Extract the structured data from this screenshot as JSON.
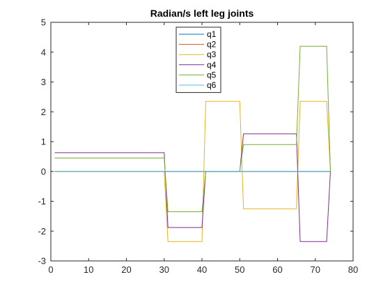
{
  "chart_data": {
    "type": "line",
    "title": "Radian/s left leg joints",
    "xlabel": "",
    "ylabel": "",
    "xlim": [
      0,
      80
    ],
    "ylim": [
      -3,
      5
    ],
    "xticks": [
      0,
      10,
      20,
      30,
      40,
      50,
      60,
      70,
      80
    ],
    "yticks": [
      -3,
      -2,
      -1,
      0,
      1,
      2,
      3,
      4,
      5
    ],
    "grid": false,
    "legend_position": "top-center",
    "series": [
      {
        "name": "q1",
        "color": "#0072BD",
        "x": [
          1,
          74
        ],
        "y": [
          0,
          0
        ]
      },
      {
        "name": "q2",
        "color": "#D95319",
        "x": [
          1,
          74
        ],
        "y": [
          0,
          0
        ]
      },
      {
        "name": "q3",
        "color": "#EDB120",
        "x": [
          1,
          30,
          31,
          40,
          41,
          50,
          51,
          65,
          66,
          73,
          74
        ],
        "y": [
          0,
          0,
          -2.35,
          -2.35,
          2.35,
          2.35,
          -1.25,
          -1.25,
          2.35,
          2.35,
          0
        ]
      },
      {
        "name": "q4",
        "color": "#7E2F8E",
        "x": [
          1,
          30,
          31,
          40,
          41,
          50,
          51,
          65,
          66,
          73,
          74
        ],
        "y": [
          0.63,
          0.63,
          -1.88,
          -1.88,
          0,
          0,
          1.26,
          1.26,
          -2.35,
          -2.35,
          0
        ]
      },
      {
        "name": "q5",
        "color": "#77AC30",
        "x": [
          1,
          30,
          31,
          40,
          41,
          50,
          51,
          65,
          66,
          73,
          74
        ],
        "y": [
          0.45,
          0.45,
          -1.35,
          -1.35,
          0,
          0,
          0.9,
          0.9,
          4.2,
          4.2,
          0
        ]
      },
      {
        "name": "q6",
        "color": "#4DBEEE",
        "x": [
          1,
          74
        ],
        "y": [
          0,
          0
        ]
      }
    ]
  }
}
